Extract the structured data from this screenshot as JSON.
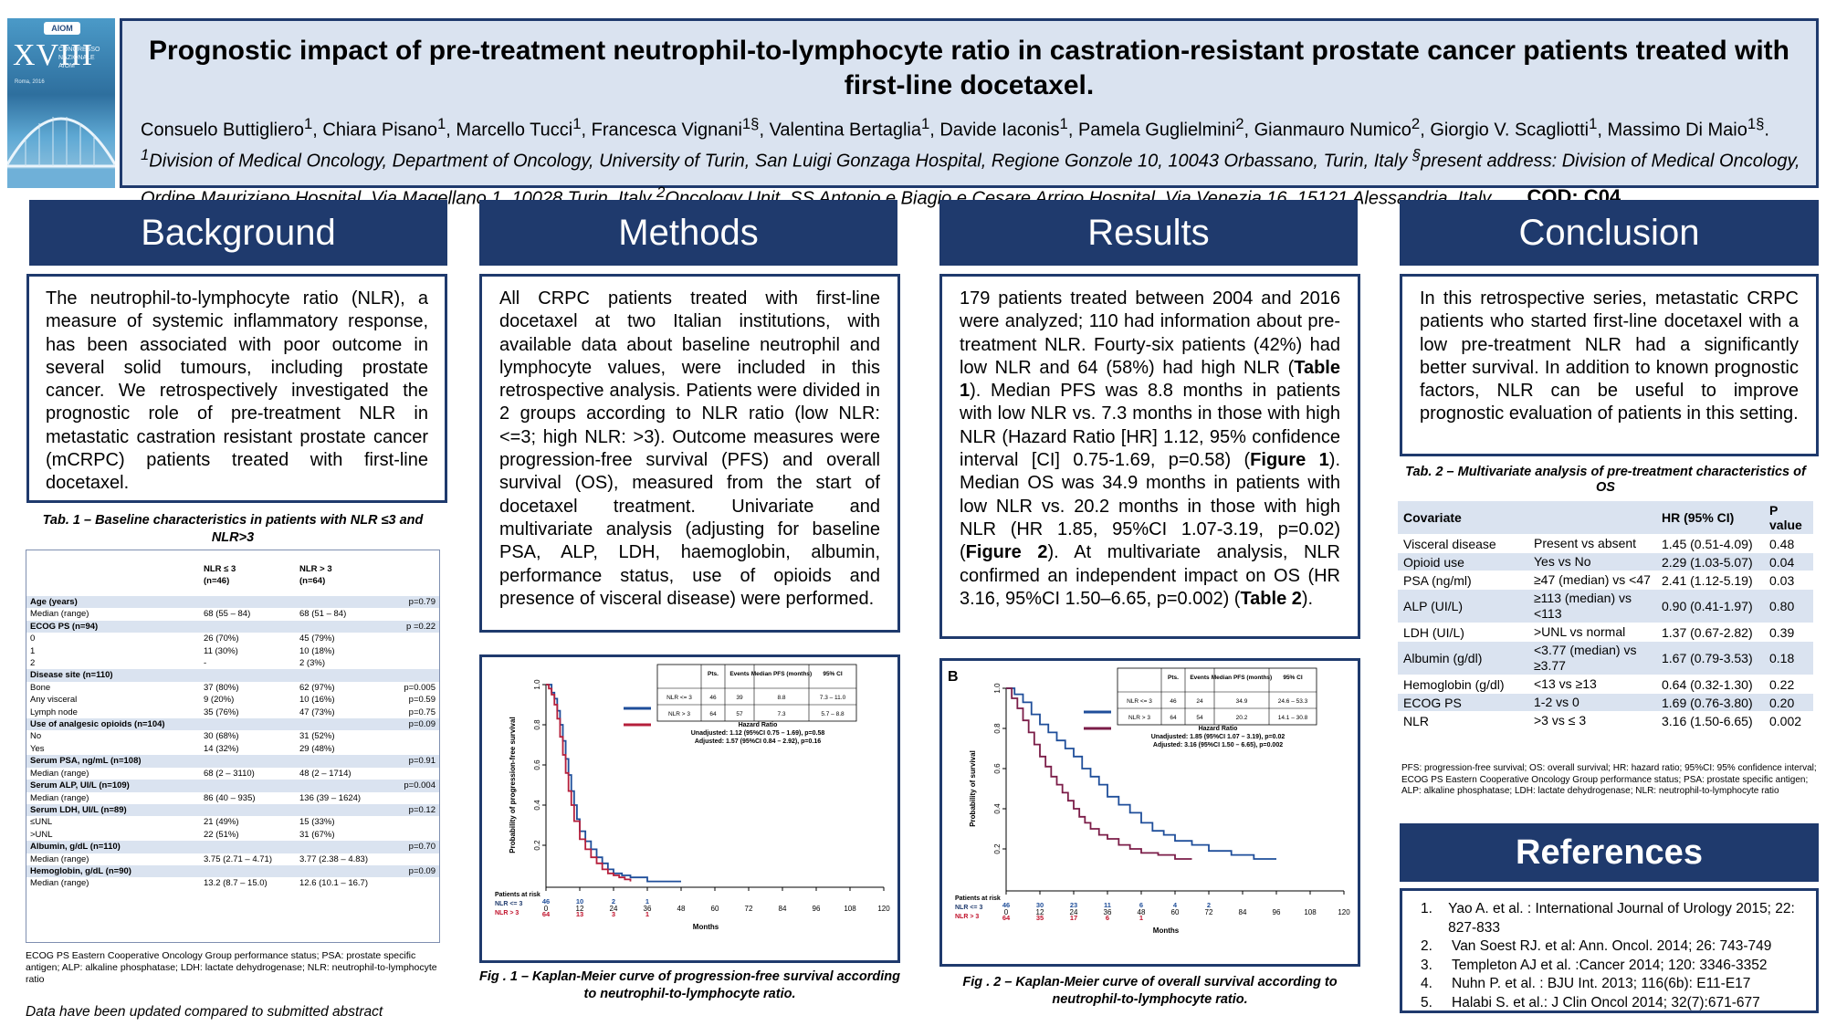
{
  "cover": {
    "logo": "AIOM",
    "roman": "XVIII",
    "lines": [
      "CONGRESSO",
      "NAZIONALE",
      "AIOM"
    ],
    "sub": "Roma, 2016"
  },
  "header": {
    "title": "Prognostic impact of pre-treatment neutrophil-to-lymphocyte ratio in castration-resistant prostate cancer patients treated with first-line docetaxel.",
    "authors": [
      {
        "name": "Consuelo Buttigliero",
        "sup": "1"
      },
      {
        "name": "Chiara Pisano",
        "sup": "1"
      },
      {
        "name": "Marcello Tucci",
        "sup": "1"
      },
      {
        "name": "Francesca Vignani",
        "sup": "1§"
      },
      {
        "name": "Valentina Bertaglia",
        "sup": "1"
      },
      {
        "name": "Davide Iaconis",
        "sup": "1"
      },
      {
        "name": "Pamela Guglielmini",
        "sup": "2"
      },
      {
        "name": "Gianmauro Numico",
        "sup": "2"
      },
      {
        "name": "Giorgio V. Scagliotti",
        "sup": "1"
      },
      {
        "name": "Massimo Di Maio",
        "sup": "1§"
      }
    ],
    "affil1_sup": "1",
    "affil1": "Division of Medical Oncology, Department of Oncology, University of Turin, San Luigi Gonzaga Hospital, Regione Gonzole 10, 10043 Orbassano, Turin, Italy",
    "affil_present_sup": "§",
    "affil_present": "present address: Division of Medical Oncology, Ordine Mauriziano Hospital, Via Magellano 1, 10028 Turin, Italy",
    "affil2_sup": "2",
    "affil2": "Oncology Unit, SS Antonio e Biagio e Cesare Arrigo Hospital, Via Venezia 16, 15121 Alessandria, Italy",
    "period": ".",
    "code": "COD: C04"
  },
  "sections": {
    "background": "Background",
    "methods": "Methods",
    "results": "Results",
    "conclusion": "Conclusion",
    "references": "References"
  },
  "background_text": "The neutrophil-to-lymphocyte ratio (NLR), a measure of systemic inflammatory response, has been associated with poor outcome in several solid tumours, including prostate cancer. We retrospectively investigated the prognostic role of pre-treatment NLR in metastatic castration resistant prostate cancer (mCRPC) patients treated with first-line docetaxel.",
  "methods_text": "All CRPC patients treated with first-line docetaxel at two Italian institutions, with available data about baseline neutrophil and lymphocyte values, were included in this retrospective analysis. Patients were divided in 2 groups according to NLR ratio (low NLR: <=3; high NLR: >3). Outcome measures were progression-free survival (PFS) and overall survival (OS), measured from the start of docetaxel treatment. Univariate and multivariate analysis (adjusting for baseline PSA, ALP, LDH, haemoglobin, albumin, performance status, use of opioids and presence of visceral disease) were performed.",
  "results": {
    "p1": "179 patients treated between 2004 and 2016 were analyzed; 110 had information about pre-treatment NLR. Fourty-six patients (42%) had low NLR and 64 (58%) had high NLR (",
    "ref_t1": "Table 1",
    "p2": "). Median PFS was 8.8 months in patients with low NLR vs. 7.3 months in those with high NLR (Hazard Ratio [HR] 1.12, 95% confidence interval [CI] 0.75-1.69, p=0.58) (",
    "ref_f1": "Figure 1",
    "p3": "). Median OS was 34.9 months in patients with low NLR vs. 20.2 months in those with high NLR (HR 1.85, 95%CI 1.07-3.19, p=0.02) (",
    "ref_f2": "Figure 2",
    "p4": "). At multivariate analysis, NLR confirmed an independent impact on OS (HR 3.16, 95%CI 1.50–6.65, p=0.002) (",
    "ref_t2": "Table 2",
    "p5": ")."
  },
  "conclusion_text": "In this retrospective series, metastatic CRPC patients who started first-line docetaxel with a low pre-treatment NLR had a significantly better survival. In addition to known prognostic factors, NLR can be useful to improve prognostic evaluation of patients in this setting.",
  "table1": {
    "caption": "Tab. 1 – Baseline characteristics in patients with NLR ≤3 and NLR>3",
    "head": [
      "",
      "NLR ≤ 3\n(n=46)",
      "NLR > 3\n(n=64)",
      ""
    ],
    "rows": [
      {
        "g": true,
        "c": [
          "Age (years)",
          "",
          "",
          "p=0.79"
        ]
      },
      {
        "g": false,
        "c": [
          "Median (range)",
          "68 (55 – 84)",
          "68 (51 – 84)",
          ""
        ]
      },
      {
        "g": true,
        "c": [
          "ECOG PS (n=94)",
          "",
          "",
          "p =0.22"
        ]
      },
      {
        "g": false,
        "c": [
          "0",
          "26 (70%)",
          "45 (79%)",
          ""
        ]
      },
      {
        "g": false,
        "c": [
          "1",
          "11 (30%)",
          "10 (18%)",
          ""
        ]
      },
      {
        "g": false,
        "c": [
          "2",
          "-",
          "2 (3%)",
          ""
        ]
      },
      {
        "g": true,
        "c": [
          "Disease site (n=110)",
          "",
          "",
          ""
        ]
      },
      {
        "g": false,
        "c": [
          "Bone",
          "37 (80%)",
          "62 (97%)",
          "p=0.005"
        ]
      },
      {
        "g": false,
        "c": [
          "Any visceral",
          "9 (20%)",
          "10 (16%)",
          "p=0.59"
        ]
      },
      {
        "g": false,
        "c": [
          "Lymph node",
          "35 (76%)",
          "47 (73%)",
          "p=0.75"
        ]
      },
      {
        "g": true,
        "c": [
          "Use of analgesic opioids  (n=104)",
          "",
          "",
          "p=0.09"
        ]
      },
      {
        "g": false,
        "c": [
          "No",
          "30 (68%)",
          "31 (52%)",
          ""
        ]
      },
      {
        "g": false,
        "c": [
          "Yes",
          "14 (32%)",
          "29 (48%)",
          ""
        ]
      },
      {
        "g": true,
        "c": [
          "Serum PSA, ng/mL (n=108)",
          "",
          "",
          "p=0.91"
        ]
      },
      {
        "g": false,
        "c": [
          "Median (range)",
          "68 (2 – 3110)",
          "48 (2 – 1714)",
          ""
        ]
      },
      {
        "g": true,
        "c": [
          "Serum ALP, UI/L (n=109)",
          "",
          "",
          "p=0.004"
        ]
      },
      {
        "g": false,
        "c": [
          "Median (range)",
          "86 (40 – 935)",
          "136 (39 – 1624)",
          ""
        ]
      },
      {
        "g": true,
        "c": [
          "Serum LDH, UI/L (n=89)",
          "",
          "",
          "p=0.12"
        ]
      },
      {
        "g": false,
        "c": [
          "≤UNL",
          "21 (49%)",
          "15 (33%)",
          ""
        ]
      },
      {
        "g": false,
        "c": [
          ">UNL",
          "22 (51%)",
          "31 (67%)",
          ""
        ]
      },
      {
        "g": true,
        "c": [
          "Albumin, g/dL (n=110)",
          "",
          "",
          "p=0.70"
        ]
      },
      {
        "g": false,
        "c": [
          "Median (range)",
          "3.75  (2.71 – 4.71)",
          "3.77  (2.38 – 4.83)",
          ""
        ]
      },
      {
        "g": true,
        "c": [
          "Hemoglobin, g/dL (n=90)",
          "",
          "",
          "p=0.09"
        ]
      },
      {
        "g": false,
        "c": [
          "Median (range)",
          "13.2  (8.7 – 15.0)",
          "12.6  (10.1 – 16.7)",
          ""
        ]
      }
    ],
    "footnote": "ECOG PS Eastern Cooperative Oncology Group performance status; PSA: prostate specific antigen; ALP: alkaline phosphatase; LDH: lactate dehydrogenase; NLR: neutrophil-to-lymphocyte ratio"
  },
  "updated_note": "Data have been updated compared to submitted abstract",
  "fig1": {
    "caption": "Fig . 1 – Kaplan-Meier curve of progression-free survival according to neutrophil-to-lymphocyte ratio.",
    "ylabel": "Probability of progression-free survival",
    "xlabel": "Months",
    "xticks": [
      "0",
      "12",
      "24",
      "36",
      "48",
      "60",
      "72",
      "84",
      "96",
      "108",
      "120"
    ],
    "yticks": [
      "0.2",
      "0.4",
      "0.6",
      "0.8",
      "1.0"
    ],
    "table_head": [
      "",
      "Pts.",
      "Events",
      "Median PFS (months)",
      "95% CI"
    ],
    "table_rows": [
      [
        "NLR <= 3",
        "46",
        "39",
        "8.8",
        "7.3 – 11.0"
      ],
      [
        "NLR > 3",
        "64",
        "57",
        "7.3",
        "5.7 – 8.8"
      ]
    ],
    "hr_title": "Hazard Ratio",
    "unadjusted": "Unadjusted: 1.12 (95%CI 0.75 – 1.69), p=0.58",
    "adjusted": "Adjusted: 1.57 (95%CI 0.84 – 2.92), p=0.16",
    "at_risk_label": "Patients at risk",
    "risk_low_label": "NLR <= 3",
    "risk_high_label": "NLR > 3",
    "risk_low": [
      "46",
      "10",
      "2",
      "1",
      "",
      "",
      "",
      "",
      "",
      "",
      ""
    ],
    "risk_high": [
      "64",
      "13",
      "3",
      "1",
      "",
      "",
      "",
      "",
      "",
      "",
      ""
    ]
  },
  "fig2": {
    "panel": "B",
    "caption": "Fig . 2 – Kaplan-Meier curve of overall survival according to neutrophil-to-lymphocyte ratio.",
    "ylabel": "Probability of survival",
    "xlabel": "Months",
    "xticks": [
      "0",
      "12",
      "24",
      "36",
      "48",
      "60",
      "72",
      "84",
      "96",
      "108",
      "120"
    ],
    "yticks": [
      "0.2",
      "0.4",
      "0.6",
      "0.8",
      "1.0"
    ],
    "table_head": [
      "",
      "Pts.",
      "Events",
      "Median PFS (months)",
      "95% CI"
    ],
    "table_rows": [
      [
        "NLR <= 3",
        "46",
        "24",
        "34.9",
        "24.6 – 53.3"
      ],
      [
        "NLR > 3",
        "64",
        "54",
        "20.2",
        "14.1 – 30.8"
      ]
    ],
    "hr_title": "Hazard Ratio",
    "unadjusted": "Unadjusted: 1.85 (95%CI 1.07 – 3.19), p=0.02",
    "adjusted": "Adjusted: 3.16 (95%CI 1.50 – 6.65), p=0.002",
    "at_risk_label": "Patients at risk",
    "risk_low_label": "NLR <= 3",
    "risk_high_label": "NLR > 3",
    "risk_low": [
      "46",
      "30",
      "23",
      "11",
      "6",
      "4",
      "2",
      "",
      "",
      "",
      ""
    ],
    "risk_high": [
      "64",
      "35",
      "17",
      "6",
      "1",
      "",
      "",
      "",
      "",
      "",
      ""
    ]
  },
  "table2": {
    "caption": "Tab. 2 – Multivariate analysis of pre-treatment characteristics of OS",
    "head": [
      "Covariate",
      "",
      "HR (95% CI)",
      "P value"
    ],
    "rows": [
      [
        "Visceral disease",
        "Present vs absent",
        "1.45 (0.51-4.09)",
        "0.48"
      ],
      [
        "Opioid use",
        "Yes vs No",
        "2.29 (1.03-5.07)",
        "0.04"
      ],
      [
        "PSA (ng/ml)",
        "≥47 (median) vs <47",
        "2.41 (1.12-5.19)",
        "0.03"
      ],
      [
        "ALP (UI/L)",
        "≥113 (median) vs <113",
        "0.90 (0.41-1.97)",
        "0.80"
      ],
      [
        "LDH (UI/L)",
        ">UNL vs normal",
        "1.37 (0.67-2.82)",
        "0.39"
      ],
      [
        "Albumin (g/dl)",
        "<3.77 (median) vs ≥3.77",
        "1.67 (0.79-3.53)",
        "0.18"
      ],
      [
        "Hemoglobin (g/dl)",
        "<13 vs ≥13",
        "0.64 (0.32-1.30)",
        "0.22"
      ],
      [
        "ECOG PS",
        "1-2 vs 0",
        "1.69 (0.76-3.80)",
        "0.20"
      ],
      [
        "NLR",
        ">3 vs ≤ 3",
        "3.16 (1.50-6.65)",
        "0.002"
      ]
    ],
    "footnote": "PFS: progression-free survival; OS: overall survival; HR: hazard ratio; 95%CI: 95% confidence interval; ECOG PS Eastern Cooperative Oncology Group performance status; PSA: prostate specific antigen; ALP: alkaline phosphatase; LDH: lactate dehydrogenase; NLR: neutrophil-to-lymphocyte ratio"
  },
  "references": [
    {
      "n": "1.",
      "t": "Yao A. et al. : International Journal of Urology 2015; 22: 827-833"
    },
    {
      "n": "2.",
      "t": "Van Soest RJ. et al: Ann. Oncol. 2014; 26: 743-749"
    },
    {
      "n": "3.",
      "t": "Templeton AJ et al. :Cancer 2014; 120: 3346-3352"
    },
    {
      "n": "4.",
      "t": "Nuhn P. et al. : BJU Int. 2013; 116(6b): E11-E17"
    },
    {
      "n": "5.",
      "t": "Halabi S. et al.: J Clin Oncol 2014; 32(7):671-677"
    }
  ],
  "chart_data": [
    {
      "type": "line",
      "title": "Kaplan-Meier curve of progression-free survival according to neutrophil-to-lymphocyte ratio",
      "xlabel": "Months",
      "ylabel": "Probability of progression-free survival",
      "xlim": [
        0,
        120
      ],
      "ylim": [
        0,
        1
      ],
      "series": [
        {
          "name": "NLR <= 3",
          "color": "#1f4e9a",
          "x": [
            0,
            2,
            3,
            4,
            5,
            6,
            7,
            8,
            9,
            10,
            11,
            12,
            14,
            16,
            18,
            20,
            22,
            24,
            27,
            30,
            36,
            48
          ],
          "y": [
            1.0,
            0.96,
            0.93,
            0.87,
            0.8,
            0.72,
            0.63,
            0.55,
            0.47,
            0.4,
            0.33,
            0.27,
            0.22,
            0.18,
            0.14,
            0.11,
            0.08,
            0.06,
            0.05,
            0.04,
            0.02,
            0.02
          ]
        },
        {
          "name": "NLR > 3",
          "color": "#b51f3b",
          "x": [
            0,
            1,
            2,
            3,
            4,
            5,
            6,
            7,
            8,
            9,
            10,
            12,
            14,
            16,
            18,
            20,
            22,
            24,
            26,
            28,
            30
          ],
          "y": [
            1.0,
            0.98,
            0.95,
            0.9,
            0.83,
            0.74,
            0.65,
            0.56,
            0.47,
            0.4,
            0.32,
            0.23,
            0.18,
            0.14,
            0.11,
            0.08,
            0.06,
            0.05,
            0.04,
            0.03,
            0.02
          ]
        }
      ]
    },
    {
      "type": "line",
      "title": "Kaplan-Meier curve of overall survival according to neutrophil-to-lymphocyte ratio",
      "xlabel": "Months",
      "ylabel": "Probability of survival",
      "xlim": [
        0,
        120
      ],
      "ylim": [
        0,
        1
      ],
      "series": [
        {
          "name": "NLR <= 3",
          "color": "#1f4e9a",
          "x": [
            0,
            3,
            6,
            9,
            12,
            15,
            18,
            21,
            24,
            27,
            30,
            33,
            36,
            40,
            44,
            48,
            52,
            56,
            60,
            66,
            72,
            80,
            88,
            96
          ],
          "y": [
            1.0,
            0.97,
            0.93,
            0.87,
            0.82,
            0.78,
            0.74,
            0.7,
            0.66,
            0.6,
            0.56,
            0.52,
            0.46,
            0.42,
            0.38,
            0.33,
            0.29,
            0.27,
            0.24,
            0.22,
            0.19,
            0.17,
            0.15,
            0.15
          ]
        },
        {
          "name": "NLR > 3",
          "color": "#7b1d48",
          "x": [
            0,
            2,
            4,
            6,
            8,
            10,
            12,
            14,
            16,
            18,
            20,
            22,
            24,
            26,
            28,
            30,
            33,
            36,
            40,
            44,
            48,
            54,
            60,
            66
          ],
          "y": [
            1.0,
            0.95,
            0.9,
            0.84,
            0.78,
            0.72,
            0.66,
            0.61,
            0.56,
            0.52,
            0.48,
            0.44,
            0.4,
            0.36,
            0.33,
            0.3,
            0.27,
            0.25,
            0.22,
            0.2,
            0.18,
            0.17,
            0.15,
            0.15
          ]
        }
      ]
    }
  ]
}
